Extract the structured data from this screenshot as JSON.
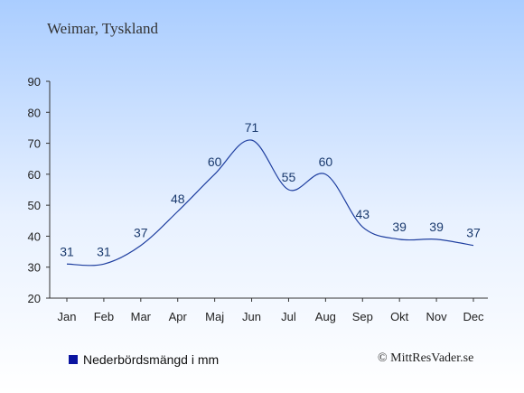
{
  "chart_data": {
    "type": "line",
    "title": "Weimar, Tyskland",
    "categories": [
      "Jan",
      "Feb",
      "Mar",
      "Apr",
      "Maj",
      "Jun",
      "Jul",
      "Aug",
      "Sep",
      "Okt",
      "Nov",
      "Dec"
    ],
    "series": [
      {
        "name": "Nederbördsmängd i mm",
        "values": [
          31,
          31,
          37,
          48,
          60,
          71,
          55,
          60,
          43,
          39,
          39,
          37
        ],
        "color": "#1f3fa0"
      }
    ],
    "yticks": [
      20,
      30,
      40,
      50,
      60,
      70,
      80,
      90
    ],
    "ylim": [
      20,
      90
    ],
    "xlabel": "",
    "ylabel": "",
    "grid": false,
    "legend_position": "bottom-left",
    "colors": {
      "line": "#1f3fa0",
      "labels": "#1a3a6e",
      "axis": "#333333",
      "legend_swatch": "#0a14a0"
    }
  },
  "legend": {
    "label": "Nederbördsmängd i mm"
  },
  "credit": "© MittResVader.se"
}
